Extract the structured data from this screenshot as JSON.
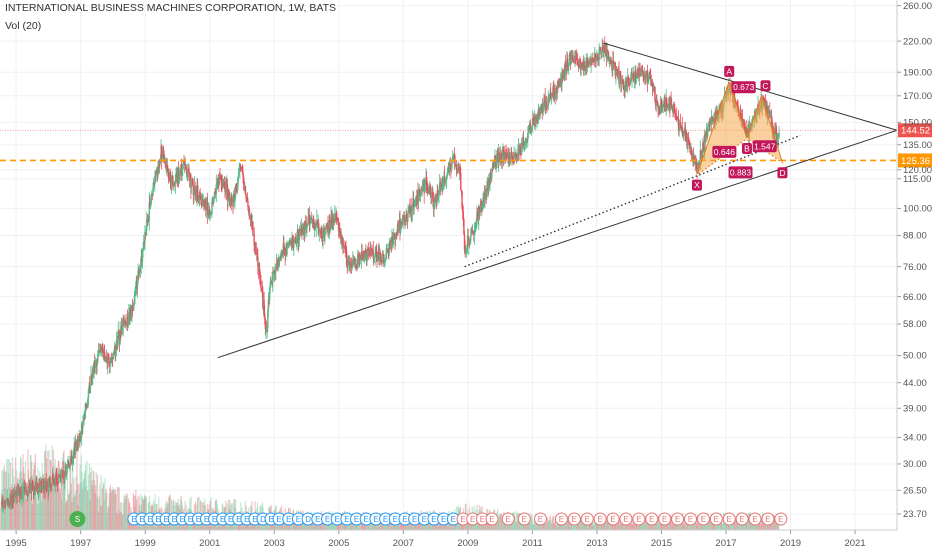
{
  "header": {
    "symbol_title": "INTERNATIONAL BUSINESS MACHINES CORPORATION, 1W, BATS",
    "volume_indicator": "Vol (20)"
  },
  "colors": {
    "up": "#53b987",
    "down": "#eb4d5c",
    "pattern_fill": "#f5a94e",
    "pattern_stroke": "#e07b1a",
    "pattern_label": "#c2185b",
    "current_price": "#ef5350",
    "support_level": "#ff9800",
    "trendline": "#333333",
    "earnings": "#2196f3",
    "earnings_red": "#e57373",
    "split": "#4caf50",
    "dividend": "#2196f3"
  },
  "chart_data": {
    "type": "candlestick",
    "title": "INTERNATIONAL BUSINESS MACHINES CORPORATION, 1W, BATS",
    "x_axis": {
      "type": "date",
      "range": [
        1994.5,
        2022.3
      ],
      "tick_labels": [
        "1995",
        "1997",
        "1999",
        "2001",
        "2003",
        "2005",
        "2007",
        "2009",
        "2011",
        "2013",
        "2015",
        "2017",
        "2019",
        "2021"
      ]
    },
    "y_axis": {
      "type": "log",
      "range": [
        22.5,
        262
      ],
      "tick_labels": [
        "260.00",
        "220.00",
        "190.00",
        "170.00",
        "150.00",
        "135.00",
        "120.00",
        "115.00",
        "100.00",
        "88.00",
        "76.00",
        "66.00",
        "58.00",
        "50.00",
        "44.00",
        "39.00",
        "34.00",
        "30.00",
        "26.50",
        "23.70"
      ],
      "tick_values": [
        260,
        220,
        190,
        170,
        150,
        135,
        120,
        115,
        100,
        88,
        76,
        66,
        58,
        50,
        44,
        39,
        34,
        30,
        26.5,
        23.7
      ]
    },
    "grid": true,
    "price_path": [
      [
        1994.55,
        25.0
      ],
      [
        1995.3,
        26.5
      ],
      [
        1995.9,
        27.2
      ],
      [
        1996.5,
        28.5
      ],
      [
        1997.0,
        34.0
      ],
      [
        1997.3,
        44.0
      ],
      [
        1997.6,
        52.0
      ],
      [
        1997.9,
        48.0
      ],
      [
        1998.2,
        55.0
      ],
      [
        1998.6,
        62.0
      ],
      [
        1998.9,
        80.0
      ],
      [
        1999.2,
        105.0
      ],
      [
        1999.5,
        130.0
      ],
      [
        1999.7,
        118.0
      ],
      [
        1999.9,
        112.0
      ],
      [
        2000.2,
        124.0
      ],
      [
        2000.5,
        110.0
      ],
      [
        2000.8,
        103.0
      ],
      [
        2001.0,
        98.0
      ],
      [
        2001.3,
        115.0
      ],
      [
        2001.7,
        102.0
      ],
      [
        2001.95,
        122.0
      ],
      [
        2002.3,
        92.0
      ],
      [
        2002.6,
        68.0
      ],
      [
        2002.75,
        56.0
      ],
      [
        2002.9,
        72.0
      ],
      [
        2003.3,
        82.0
      ],
      [
        2003.8,
        88.0
      ],
      [
        2004.1,
        95.0
      ],
      [
        2004.5,
        88.0
      ],
      [
        2004.9,
        96.0
      ],
      [
        2005.3,
        76.0
      ],
      [
        2005.7,
        80.0
      ],
      [
        2006.0,
        82.0
      ],
      [
        2006.4,
        78.0
      ],
      [
        2006.9,
        93.0
      ],
      [
        2007.3,
        102.0
      ],
      [
        2007.7,
        112.0
      ],
      [
        2007.95,
        103.0
      ],
      [
        2008.3,
        115.0
      ],
      [
        2008.55,
        125.0
      ],
      [
        2008.75,
        120.0
      ],
      [
        2008.9,
        82.0
      ],
      [
        2009.1,
        88.0
      ],
      [
        2009.5,
        105.0
      ],
      [
        2009.9,
        128.0
      ],
      [
        2010.5,
        128.0
      ],
      [
        2010.95,
        145.0
      ],
      [
        2011.4,
        165.0
      ],
      [
        2011.85,
        180.0
      ],
      [
        2012.2,
        205.0
      ],
      [
        2012.6,
        195.0
      ],
      [
        2013.2,
        212.0
      ],
      [
        2013.6,
        190.0
      ],
      [
        2013.9,
        178.0
      ],
      [
        2014.3,
        190.0
      ],
      [
        2014.6,
        188.0
      ],
      [
        2014.9,
        160.0
      ],
      [
        2015.3,
        165.0
      ],
      [
        2015.6,
        145.0
      ],
      [
        2015.85,
        135.0
      ],
      [
        2016.1,
        120.0
      ],
      [
        2016.5,
        150.0
      ],
      [
        2016.9,
        160.0
      ],
      [
        2017.1,
        180.0
      ],
      [
        2017.4,
        155.0
      ],
      [
        2017.7,
        142.0
      ],
      [
        2018.0,
        160.0
      ],
      [
        2018.2,
        165.0
      ],
      [
        2018.45,
        145.0
      ],
      [
        2018.65,
        140.0
      ]
    ],
    "volume": {
      "indicator": "Vol (20)",
      "profile": [
        [
          1994.5,
          0.8
        ],
        [
          1996.0,
          0.95
        ],
        [
          1997.0,
          0.85
        ],
        [
          1998.0,
          0.5
        ],
        [
          1999.0,
          0.42
        ],
        [
          2000.0,
          0.38
        ],
        [
          2002.0,
          0.35
        ],
        [
          2004.0,
          0.22
        ],
        [
          2006.0,
          0.2
        ],
        [
          2008.0,
          0.22
        ],
        [
          2009.0,
          0.3
        ],
        [
          2011.0,
          0.18
        ],
        [
          2013.0,
          0.16
        ],
        [
          2015.0,
          0.18
        ],
        [
          2017.0,
          0.2
        ],
        [
          2018.7,
          0.2
        ]
      ]
    },
    "price_levels": [
      {
        "value": 144.52,
        "label": "144.52",
        "style": "dotted",
        "role": "current"
      },
      {
        "value": 125.36,
        "label": "125.36",
        "style": "dashed",
        "role": "support"
      }
    ],
    "trendlines": [
      {
        "from": [
          2001.25,
          49.5
        ],
        "to": [
          2022.3,
          144.52
        ],
        "style": "solid"
      },
      {
        "from": [
          2013.2,
          218.0
        ],
        "to": [
          2022.3,
          144.52
        ],
        "style": "solid"
      },
      {
        "from": [
          2008.9,
          76.0
        ],
        "to": [
          2019.3,
          141.0
        ],
        "style": "dotted"
      }
    ],
    "harmonic_pattern": {
      "points": [
        {
          "name": "X",
          "x": 2016.1,
          "y": 117.0
        },
        {
          "name": "A",
          "x": 2017.1,
          "y": 182.0
        },
        {
          "name": "B",
          "x": 2017.65,
          "y": 139.0
        },
        {
          "name": "C",
          "x": 2018.1,
          "y": 170.0
        },
        {
          "name": "D",
          "x": 2018.75,
          "y": 124.0
        }
      ],
      "ratios": [
        {
          "label": "0.673",
          "x": 2017.55,
          "y": 177.0
        },
        {
          "label": "0.646",
          "x": 2016.95,
          "y": 130.5
        },
        {
          "label": "1.547",
          "x": 2018.2,
          "y": 134.0
        },
        {
          "label": "0.883",
          "x": 2017.45,
          "y": 118.5
        }
      ]
    },
    "events": [
      {
        "x": 1996.9,
        "label": "S",
        "kind": "split"
      },
      {
        "x": 1998.65,
        "label": "E"
      },
      {
        "x": 1998.9,
        "label": "E"
      },
      {
        "x": 1999.15,
        "label": "E"
      },
      {
        "x": 1999.4,
        "label": "E"
      },
      {
        "x": 1999.65,
        "label": "E"
      },
      {
        "x": 1999.9,
        "label": "E"
      },
      {
        "x": 2000.15,
        "label": "E"
      },
      {
        "x": 2000.4,
        "label": "E"
      },
      {
        "x": 2000.65,
        "label": "E"
      },
      {
        "x": 2000.9,
        "label": "E"
      },
      {
        "x": 2001.15,
        "label": "E"
      },
      {
        "x": 2001.4,
        "label": "E"
      },
      {
        "x": 2001.65,
        "label": "E"
      },
      {
        "x": 2001.9,
        "label": "E"
      },
      {
        "x": 2002.15,
        "label": "E"
      },
      {
        "x": 2002.4,
        "label": "E"
      },
      {
        "x": 2002.65,
        "label": "D",
        "kind": "dividend"
      },
      {
        "x": 2002.9,
        "label": "E"
      },
      {
        "x": 2003.15,
        "label": "E"
      },
      {
        "x": 2003.45,
        "label": "E"
      },
      {
        "x": 2003.75,
        "label": "E"
      },
      {
        "x": 2004.05,
        "label": "D",
        "kind": "dividend"
      },
      {
        "x": 2004.35,
        "label": "E"
      },
      {
        "x": 2004.65,
        "label": "E"
      },
      {
        "x": 2004.95,
        "label": "E"
      },
      {
        "x": 2005.25,
        "label": "E"
      },
      {
        "x": 2005.55,
        "label": "E"
      },
      {
        "x": 2005.85,
        "label": "E"
      },
      {
        "x": 2006.15,
        "label": "E"
      },
      {
        "x": 2006.45,
        "label": "E"
      },
      {
        "x": 2006.75,
        "label": "E"
      },
      {
        "x": 2007.05,
        "label": "E"
      },
      {
        "x": 2007.35,
        "label": "E"
      },
      {
        "x": 2007.65,
        "label": "E"
      },
      {
        "x": 2007.95,
        "label": "E"
      },
      {
        "x": 2008.25,
        "label": "E"
      },
      {
        "x": 2008.55,
        "label": "E"
      },
      {
        "x": 2008.85,
        "label": "E",
        "kind": "earnings_red"
      },
      {
        "x": 2009.15,
        "label": "E",
        "kind": "earnings_red"
      },
      {
        "x": 2009.45,
        "label": "E",
        "kind": "earnings_red"
      },
      {
        "x": 2009.75,
        "label": "E",
        "kind": "earnings_red"
      },
      {
        "x": 2010.25,
        "label": "E",
        "kind": "earnings_red"
      },
      {
        "x": 2010.75,
        "label": "E",
        "kind": "earnings_red"
      },
      {
        "x": 2011.25,
        "label": "E",
        "kind": "earnings_red"
      },
      {
        "x": 2011.9,
        "label": "E",
        "kind": "earnings_red"
      },
      {
        "x": 2012.3,
        "label": "E",
        "kind": "earnings_red"
      },
      {
        "x": 2012.7,
        "label": "E",
        "kind": "earnings_red"
      },
      {
        "x": 2013.1,
        "label": "E",
        "kind": "earnings_red"
      },
      {
        "x": 2013.5,
        "label": "E",
        "kind": "earnings_red"
      },
      {
        "x": 2013.9,
        "label": "E",
        "kind": "earnings_red"
      },
      {
        "x": 2014.3,
        "label": "E",
        "kind": "earnings_red"
      },
      {
        "x": 2014.7,
        "label": "E",
        "kind": "earnings_red"
      },
      {
        "x": 2015.1,
        "label": "E",
        "kind": "earnings_red"
      },
      {
        "x": 2015.5,
        "label": "E",
        "kind": "earnings_red"
      },
      {
        "x": 2015.9,
        "label": "E",
        "kind": "earnings_red"
      },
      {
        "x": 2016.3,
        "label": "E",
        "kind": "earnings_red"
      },
      {
        "x": 2016.7,
        "label": "E",
        "kind": "earnings_red"
      },
      {
        "x": 2017.1,
        "label": "E",
        "kind": "earnings_red"
      },
      {
        "x": 2017.5,
        "label": "E",
        "kind": "earnings_red"
      },
      {
        "x": 2017.9,
        "label": "E",
        "kind": "earnings_red"
      },
      {
        "x": 2018.3,
        "label": "E",
        "kind": "earnings_red"
      },
      {
        "x": 2018.7,
        "label": "E",
        "kind": "earnings_red"
      }
    ]
  }
}
